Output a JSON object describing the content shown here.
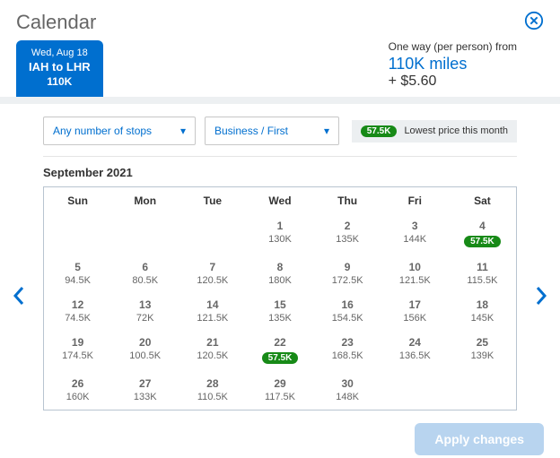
{
  "title": "Calendar",
  "route_tab": {
    "date": "Wed, Aug 18",
    "route": "IAH to LHR",
    "miles": "110K"
  },
  "fare": {
    "label": "One way (per person) from",
    "miles": "110K miles",
    "cash": "+ $5.60"
  },
  "dropdowns": {
    "stops": "Any number of stops",
    "cabin": "Business / First"
  },
  "lowest": {
    "badge": "57.5K",
    "label": "Lowest price this month"
  },
  "month": "September 2021",
  "dow": [
    "Sun",
    "Mon",
    "Tue",
    "Wed",
    "Thu",
    "Fri",
    "Sat"
  ],
  "calendar": {
    "type": "month-grid",
    "colors": {
      "border": "#b8c4d0",
      "text": "#666666",
      "lowest_pill": "#178a17",
      "accent": "#006fcf"
    },
    "weeks": [
      [
        null,
        null,
        null,
        {
          "d": "1",
          "p": "130K"
        },
        {
          "d": "2",
          "p": "135K"
        },
        {
          "d": "3",
          "p": "144K"
        },
        {
          "d": "4",
          "p": "57.5K",
          "lowest": true
        }
      ],
      [
        {
          "d": "5",
          "p": "94.5K"
        },
        {
          "d": "6",
          "p": "80.5K"
        },
        {
          "d": "7",
          "p": "120.5K"
        },
        {
          "d": "8",
          "p": "180K"
        },
        {
          "d": "9",
          "p": "172.5K"
        },
        {
          "d": "10",
          "p": "121.5K"
        },
        {
          "d": "11",
          "p": "115.5K"
        }
      ],
      [
        {
          "d": "12",
          "p": "74.5K"
        },
        {
          "d": "13",
          "p": "72K"
        },
        {
          "d": "14",
          "p": "121.5K"
        },
        {
          "d": "15",
          "p": "135K"
        },
        {
          "d": "16",
          "p": "154.5K"
        },
        {
          "d": "17",
          "p": "156K"
        },
        {
          "d": "18",
          "p": "145K"
        }
      ],
      [
        {
          "d": "19",
          "p": "174.5K"
        },
        {
          "d": "20",
          "p": "100.5K"
        },
        {
          "d": "21",
          "p": "120.5K"
        },
        {
          "d": "22",
          "p": "57.5K",
          "lowest": true
        },
        {
          "d": "23",
          "p": "168.5K"
        },
        {
          "d": "24",
          "p": "136.5K"
        },
        {
          "d": "25",
          "p": "139K"
        }
      ],
      [
        {
          "d": "26",
          "p": "160K"
        },
        {
          "d": "27",
          "p": "133K"
        },
        {
          "d": "28",
          "p": "110.5K"
        },
        {
          "d": "29",
          "p": "117.5K"
        },
        {
          "d": "30",
          "p": "148K"
        },
        null,
        null
      ]
    ]
  },
  "apply_label": "Apply changes"
}
